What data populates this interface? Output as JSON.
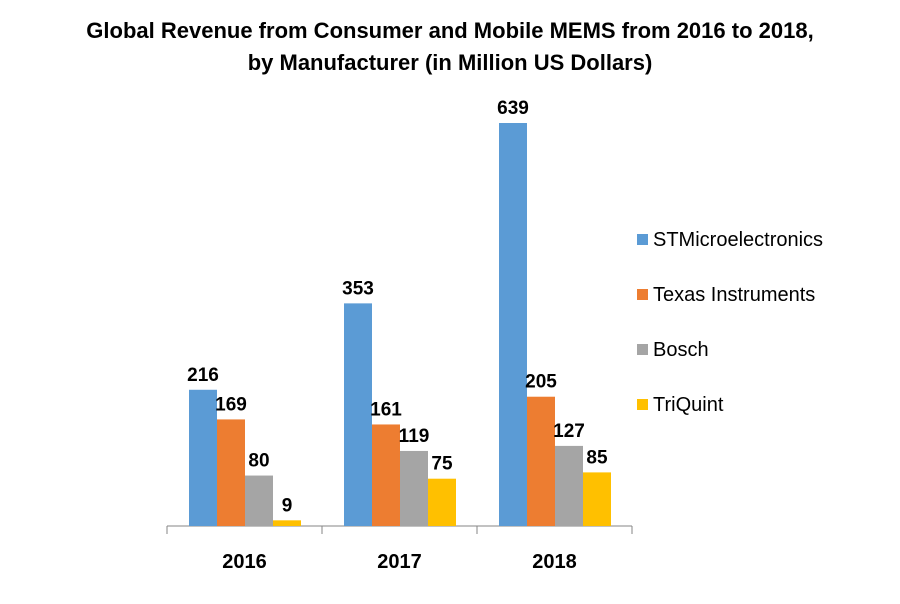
{
  "chart_data": {
    "type": "bar",
    "title": "Global Revenue from Consumer and Mobile MEMS from 2016 to 2018, by Manufacturer (in Million US Dollars)",
    "title_lines": [
      "Global Revenue from Consumer and Mobile MEMS from 2016 to 2018,",
      "by Manufacturer (in Million US Dollars)"
    ],
    "categories": [
      "2016",
      "2017",
      "2018"
    ],
    "series": [
      {
        "name": "STMicroelectronics",
        "color": "#5B9BD5",
        "values": [
          216,
          353,
          639
        ]
      },
      {
        "name": "Texas Instruments",
        "color": "#ED7D31",
        "values": [
          169,
          161,
          205
        ]
      },
      {
        "name": "Bosch",
        "color": "#A5A5A5",
        "values": [
          80,
          119,
          127
        ]
      },
      {
        "name": "TriQuint",
        "color": "#FFC000",
        "values": [
          9,
          75,
          85
        ]
      }
    ],
    "xlabel": "",
    "ylabel": "",
    "ylim": [
      0,
      639
    ],
    "grid": false,
    "data_labels": true,
    "legend_position": "right"
  }
}
